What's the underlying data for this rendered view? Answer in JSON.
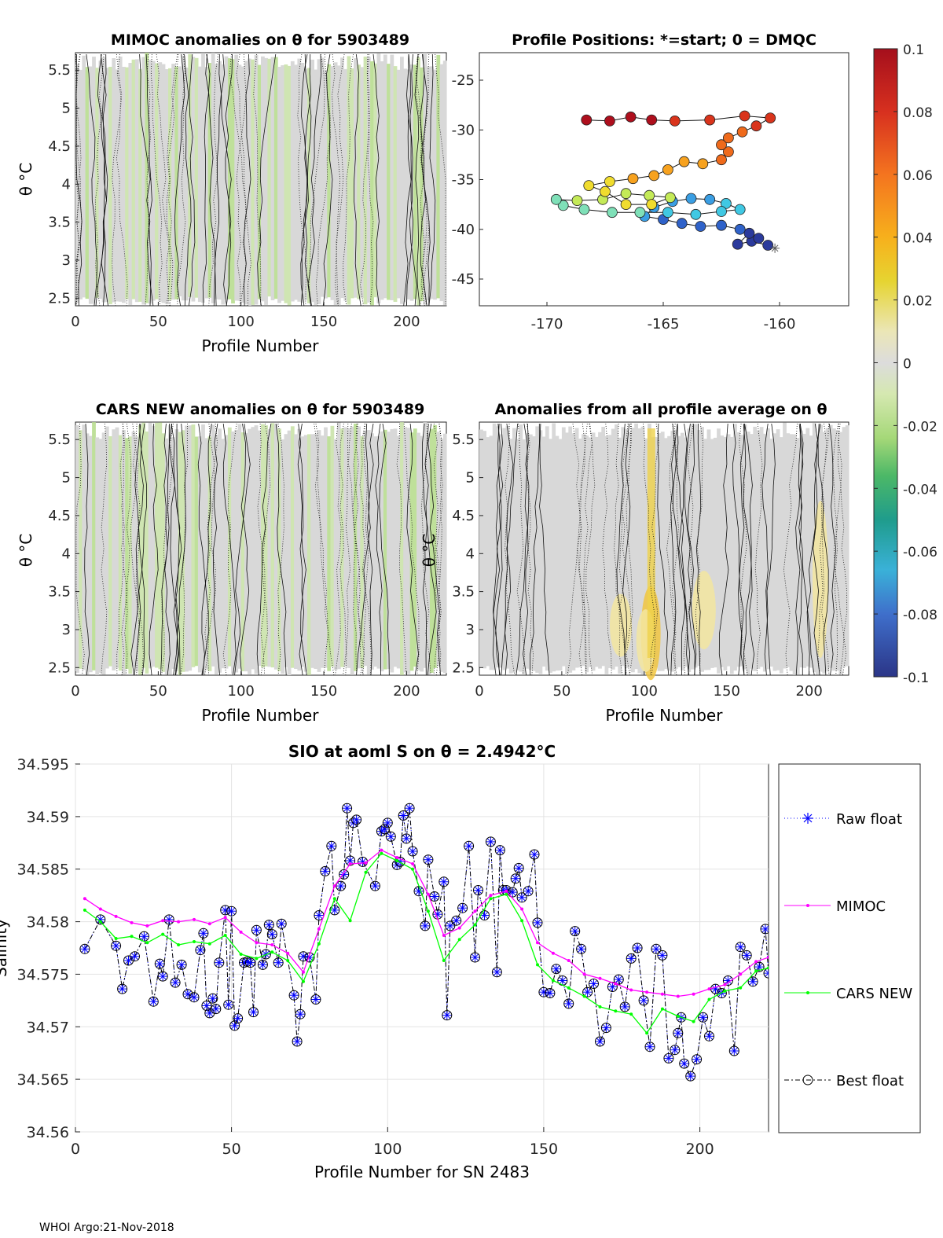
{
  "footer": "WHOI Argo:21-Nov-2018",
  "panels": {
    "mimoc": {
      "title": "MIMOC anomalies on θ  for 5903489",
      "xlabel": "Profile Number",
      "ylabel": "θ °C",
      "xticks": [
        "0",
        "50",
        "100",
        "150",
        "200"
      ],
      "yticks": [
        "2.5",
        "3",
        "3.5",
        "4",
        "4.5",
        "5",
        "5.5"
      ]
    },
    "positions": {
      "title": "Profile Positions: *=start; 0 = DMQC",
      "xticks": [
        "-170",
        "-165",
        "-160"
      ],
      "yticks": [
        "-25",
        "-30",
        "-35",
        "-40",
        "-45"
      ]
    },
    "cars": {
      "title": "CARS NEW anomalies on θ for 5903489",
      "xlabel": "Profile Number",
      "ylabel": "θ °C",
      "xticks": [
        "0",
        "50",
        "100",
        "150",
        "200"
      ],
      "yticks": [
        "2.5",
        "3",
        "3.5",
        "4",
        "4.5",
        "5",
        "5.5"
      ]
    },
    "allavg": {
      "title": "Anomalies from all profile average on θ",
      "xlabel": "Profile Number",
      "ylabel": "θ °C",
      "xticks": [
        "0",
        "50",
        "100",
        "150",
        "200"
      ],
      "yticks": [
        "2.5",
        "3",
        "3.5",
        "4",
        "4.5",
        "5",
        "5.5"
      ]
    }
  },
  "colorbar": {
    "ticks": [
      "0.1",
      "0.08",
      "0.06",
      "0.04",
      "0.02",
      "0",
      "-0.02",
      "-0.04",
      "-0.06",
      "-0.08",
      "-0.1"
    ],
    "colors": [
      "#aa0a1e",
      "#d7301f",
      "#f46d25",
      "#fbb022",
      "#e6d431",
      "#e8e4b4",
      "#dcdcdc",
      "#c8e6a0",
      "#5ec26e",
      "#23a086",
      "#2d8ec7",
      "#3a63c7",
      "#2b3a8f"
    ]
  },
  "chart_data": {
    "type": "line",
    "title": "SIO at aoml S on θ = 2.4942°C",
    "xlabel": "Profile Number for SN 2483",
    "ylabel": "Salinity",
    "xlim": [
      0,
      222
    ],
    "ylim": [
      34.56,
      34.595
    ],
    "xticks": [
      "0",
      "50",
      "100",
      "150",
      "200"
    ],
    "yticks": [
      "34.56",
      "34.565",
      "34.57",
      "34.575",
      "34.58",
      "34.585",
      "34.59",
      "34.595"
    ],
    "legend": [
      "Raw float",
      "MIMOC",
      "CARS NEW",
      "Best float"
    ],
    "legend_position": "right-outside",
    "series": [
      {
        "name": "Best float",
        "color": "#000000",
        "x": [
          3,
          8,
          13,
          15,
          17,
          19,
          22,
          25,
          27,
          28,
          30,
          32,
          34,
          36,
          38,
          40,
          41,
          42,
          43,
          44,
          45,
          46,
          48,
          49,
          50,
          51,
          52,
          54,
          55,
          56,
          57,
          58,
          60,
          61,
          62,
          63,
          65,
          66,
          70,
          71,
          72,
          73,
          75,
          77,
          78,
          80,
          82,
          83,
          85,
          86,
          87,
          88,
          89,
          90,
          92,
          96,
          98,
          99,
          100,
          101,
          103,
          104,
          105,
          106,
          107,
          108,
          110,
          112,
          113,
          115,
          116,
          118,
          119,
          120,
          122,
          124,
          126,
          128,
          129,
          131,
          133,
          135,
          136,
          137,
          138,
          140,
          141,
          142,
          143,
          145,
          147,
          148,
          150,
          152,
          154,
          156,
          158,
          160,
          162,
          164,
          166,
          168,
          170,
          172,
          174,
          176,
          178,
          180,
          182,
          184,
          186,
          188,
          190,
          192,
          193,
          194,
          195,
          197,
          199,
          201,
          203,
          205,
          207,
          209,
          211,
          213,
          215,
          217,
          219,
          221,
          222
        ],
        "y": [
          34.5774,
          34.5802,
          34.5777,
          34.5736,
          34.5763,
          34.5767,
          34.5786,
          34.5724,
          34.576,
          34.5748,
          34.5802,
          34.5742,
          34.5759,
          34.5731,
          34.5728,
          34.5773,
          34.5789,
          34.572,
          34.5713,
          34.5727,
          34.5717,
          34.5761,
          34.5811,
          34.5721,
          34.581,
          34.5701,
          34.5708,
          34.5761,
          34.5762,
          34.5761,
          34.5714,
          34.5792,
          34.5759,
          34.5769,
          34.5797,
          34.5788,
          34.5761,
          34.5798,
          34.573,
          34.5686,
          34.5712,
          34.5767,
          34.5766,
          34.5726,
          34.5806,
          34.5848,
          34.5872,
          34.5811,
          34.5834,
          34.5845,
          34.5908,
          34.5858,
          34.5894,
          34.5897,
          34.5857,
          34.5834,
          34.5886,
          34.5888,
          34.5894,
          34.5881,
          34.5854,
          34.5857,
          34.5901,
          34.5879,
          34.5908,
          34.5867,
          34.5829,
          34.5796,
          34.5859,
          34.5824,
          34.5807,
          34.5838,
          34.5711,
          34.5796,
          34.5801,
          34.5813,
          34.5872,
          34.5766,
          34.583,
          34.5806,
          34.5876,
          34.5752,
          34.5868,
          34.583,
          34.583,
          34.5828,
          34.5841,
          34.5851,
          34.5823,
          34.5829,
          34.5864,
          34.5799,
          34.5733,
          34.5732,
          34.5755,
          34.5744,
          34.5722,
          34.5791,
          34.5774,
          34.5733,
          34.5741,
          34.5686,
          34.5699,
          34.5738,
          34.5745,
          34.5719,
          34.5765,
          34.5775,
          34.5725,
          34.5681,
          34.5774,
          34.5768,
          34.567,
          34.5678,
          34.5694,
          34.5709,
          34.5665,
          34.5653,
          34.5669,
          34.5709,
          34.5691,
          34.5736,
          34.5732,
          34.5744,
          34.5677,
          34.5776,
          34.5768,
          34.5743,
          34.5757,
          34.5793,
          34.5751
        ]
      },
      {
        "name": "MIMOC",
        "color": "#ff00ff",
        "x": [
          3,
          8,
          13,
          18,
          23,
          28,
          33,
          38,
          43,
          48,
          53,
          58,
          63,
          68,
          73,
          78,
          83,
          88,
          93,
          98,
          103,
          108,
          113,
          118,
          123,
          128,
          133,
          138,
          143,
          148,
          153,
          158,
          163,
          168,
          173,
          178,
          183,
          188,
          193,
          198,
          203,
          208,
          213,
          218,
          222
        ],
        "y": [
          34.5822,
          34.5812,
          34.5805,
          34.5799,
          34.5796,
          34.5801,
          34.58,
          34.5802,
          34.5798,
          34.5804,
          34.579,
          34.578,
          34.5778,
          34.577,
          34.5752,
          34.5793,
          34.5834,
          34.5855,
          34.5856,
          34.5868,
          34.5861,
          34.5855,
          34.5826,
          34.5787,
          34.5794,
          34.581,
          34.5825,
          34.5829,
          34.5812,
          34.578,
          34.577,
          34.5763,
          34.575,
          34.5746,
          34.5741,
          34.5735,
          34.5733,
          34.5731,
          34.5729,
          34.5731,
          34.5736,
          34.574,
          34.575,
          34.5762,
          34.5766
        ]
      },
      {
        "name": "CARS NEW",
        "color": "#00ff00",
        "x": [
          3,
          8,
          13,
          18,
          23,
          28,
          33,
          38,
          43,
          48,
          53,
          58,
          63,
          68,
          73,
          78,
          83,
          88,
          93,
          98,
          103,
          108,
          113,
          118,
          123,
          128,
          133,
          138,
          143,
          148,
          153,
          158,
          163,
          168,
          173,
          178,
          183,
          188,
          193,
          198,
          203,
          208,
          213,
          218,
          222
        ],
        "y": [
          34.5811,
          34.58,
          34.5784,
          34.5786,
          34.578,
          34.5788,
          34.5778,
          34.5781,
          34.5779,
          34.5787,
          34.5769,
          34.5765,
          34.5771,
          34.5763,
          34.5743,
          34.5779,
          34.5822,
          34.5801,
          34.5847,
          34.5865,
          34.5858,
          34.585,
          34.581,
          34.5763,
          34.5783,
          34.5797,
          34.5822,
          34.5826,
          34.5801,
          34.5759,
          34.5744,
          34.5737,
          34.5729,
          34.5719,
          34.5715,
          34.5712,
          34.5694,
          34.5717,
          34.571,
          34.5705,
          34.5726,
          34.5734,
          34.5737,
          34.5753,
          34.5756
        ]
      }
    ]
  }
}
